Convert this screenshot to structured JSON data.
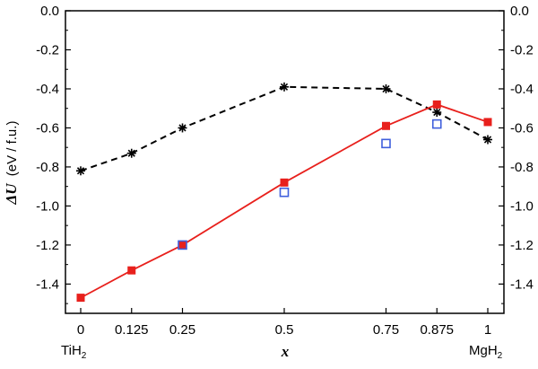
{
  "chart_data": {
    "type": "line",
    "title": "",
    "xlabel": "x",
    "ylabel": {
      "symbol": "ΔU",
      "unit": "(eV / f.u.)"
    },
    "xlim": [
      0,
      1
    ],
    "ylim": [
      -1.55,
      0.0
    ],
    "x_ticks": [
      0,
      0.125,
      0.25,
      0.5,
      0.75,
      0.875,
      1
    ],
    "x_tick_labels": [
      "0",
      "0.125",
      "0.25",
      "0.5",
      "0.75",
      "0.875",
      "1"
    ],
    "y_ticks": [
      0.0,
      -0.2,
      -0.4,
      -0.6,
      -0.8,
      -1.0,
      -1.2,
      -1.4
    ],
    "y_tick_labels": [
      "0.0",
      "-0.2",
      "-0.4",
      "-0.6",
      "-0.8",
      "-1.0",
      "-1.2",
      "-1.4"
    ],
    "end_labels": {
      "left": {
        "base": "TiH",
        "sub": "2"
      },
      "right": {
        "base": "MgH",
        "sub": "2"
      }
    },
    "grid": false,
    "legend": "none",
    "series": [
      {
        "style": "dashed-black-asterisk",
        "color": "#000000",
        "x": [
          0,
          0.125,
          0.25,
          0.5,
          0.75,
          0.875,
          1
        ],
        "y": [
          -0.82,
          -0.73,
          -0.6,
          -0.39,
          -0.4,
          -0.52,
          -0.66
        ]
      },
      {
        "style": "solid-red-filled-square",
        "color": "#e8201c",
        "x": [
          0,
          0.125,
          0.25,
          0.5,
          0.75,
          0.875,
          1
        ],
        "y": [
          -1.47,
          -1.33,
          -1.2,
          -0.88,
          -0.59,
          -0.48,
          -0.57
        ]
      },
      {
        "style": "blue-open-square",
        "color": "#3f5fdc",
        "x": [
          0.25,
          0.5,
          0.75,
          0.875
        ],
        "y": [
          -1.2,
          -0.93,
          -0.68,
          -0.58
        ]
      }
    ]
  }
}
